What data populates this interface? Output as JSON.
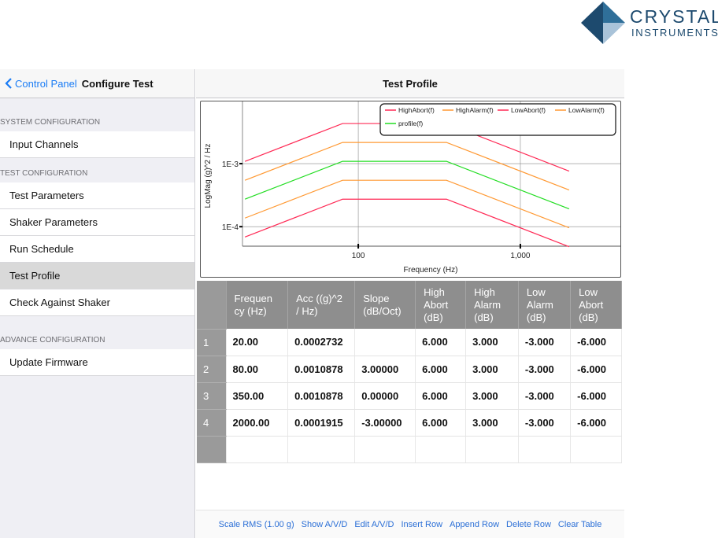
{
  "logo": {
    "line1": "CRYSTAL",
    "line2": "INSTRUMENTS"
  },
  "sidebar": {
    "back_label": "Control Panel",
    "title": "Configure Test",
    "sections": [
      {
        "label": "SYSTEM CONFIGURATION",
        "items": [
          {
            "label": "Input Channels"
          }
        ]
      },
      {
        "label": "TEST CONFIGURATION",
        "items": [
          {
            "label": "Test Parameters"
          },
          {
            "label": "Shaker Parameters"
          },
          {
            "label": "Run Schedule"
          },
          {
            "label": "Test Profile",
            "selected": true
          },
          {
            "label": "Check Against Shaker"
          }
        ]
      },
      {
        "label": "ADVANCE CONFIGURATION",
        "items": [
          {
            "label": "Update Firmware"
          }
        ]
      }
    ]
  },
  "main": {
    "title": "Test Profile"
  },
  "chart_data": {
    "type": "line",
    "xscale": "log",
    "yscale": "log",
    "xlabel": "Frequency (Hz)",
    "ylabel": "LogMag (g)^2 / Hz",
    "xlim": [
      19.3,
      4050
    ],
    "ylim": [
      4.9e-05,
      0.0084
    ],
    "xticks": [
      {
        "v": 100,
        "label": "100"
      },
      {
        "v": 1000,
        "label": "1,000"
      }
    ],
    "yticks": [
      {
        "v": 0.001,
        "label": "1E-3"
      },
      {
        "v": 0.0001,
        "label": "1E-4"
      }
    ],
    "legend_position": "top-right",
    "x": [
      20,
      80,
      350,
      2000
    ],
    "series": [
      {
        "name": "HighAbort(f)",
        "color": "#ff2a55",
        "values": [
          0.0010872,
          0.0043297,
          0.0043297,
          0.0007622
        ]
      },
      {
        "name": "HighAlarm(f)",
        "color": "#ff9933",
        "values": [
          0.0005451,
          0.0021704,
          0.0021704,
          0.0003821
        ]
      },
      {
        "name": "LowAbort(f)",
        "color": "#ff2a55",
        "values": [
          6.86e-05,
          0.0002731,
          0.0002731,
          4.81e-05
        ]
      },
      {
        "name": "LowAlarm(f)",
        "color": "#ff9933",
        "values": [
          0.0001369,
          0.0005452,
          0.0005452,
          9.6e-05
        ]
      },
      {
        "name": "profile(f)",
        "color": "#22dd22",
        "values": [
          0.0002732,
          0.0010878,
          0.0010878,
          0.0001915
        ]
      }
    ]
  },
  "table": {
    "headers": [
      "Frequen cy (Hz)",
      "Acc ((g)^2 / Hz)",
      "Slope (dB/Oct)",
      "High Abort (dB)",
      "High Alarm (dB)",
      "Low Alarm (dB)",
      "Low Abort (dB)"
    ],
    "rows": [
      {
        "index": "1",
        "cells": [
          "20.00",
          "0.0002732",
          "",
          "6.000",
          "3.000",
          "-3.000",
          "-6.000"
        ]
      },
      {
        "index": "2",
        "cells": [
          "80.00",
          "0.0010878",
          "3.00000",
          "6.000",
          "3.000",
          "-3.000",
          "-6.000"
        ]
      },
      {
        "index": "3",
        "cells": [
          "350.00",
          "0.0010878",
          "0.00000",
          "6.000",
          "3.000",
          "-3.000",
          "-6.000"
        ]
      },
      {
        "index": "4",
        "cells": [
          "2000.00",
          "0.0001915",
          "-3.00000",
          "6.000",
          "3.000",
          "-3.000",
          "-6.000"
        ]
      }
    ]
  },
  "toolbar": [
    "Scale RMS (1.00 g)",
    "Show A/V/D",
    "Edit A/V/D",
    "Insert Row",
    "Append Row",
    "Delete Row",
    "Clear Table"
  ]
}
